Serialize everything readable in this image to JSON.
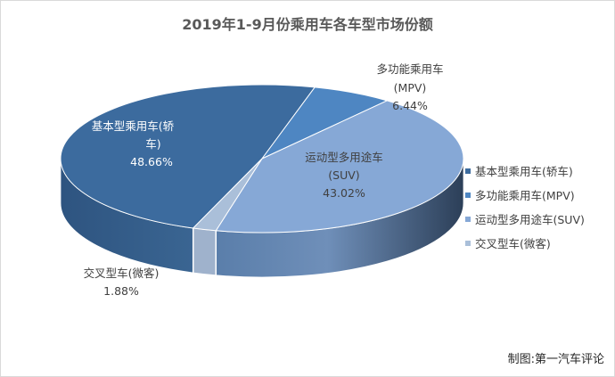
{
  "chart_data": {
    "type": "pie",
    "variant": "3d",
    "title": "2019年1-9月份乘用车各车型市场份额",
    "categories": [
      "基本型乘用车(轿车)",
      "多功能乘用车(MPV)",
      "运动型多用途车(SUV)",
      "交叉型车(微客)"
    ],
    "values": [
      48.66,
      6.44,
      43.02,
      1.88
    ],
    "value_labels": [
      "48.66%",
      "6.44%",
      "43.02%",
      "1.88%"
    ],
    "colors": [
      "#3c6b9e",
      "#4e86c2",
      "#86a8d6",
      "#aabfd9"
    ],
    "legend_position": "right",
    "data_labels": {
      "sedan": [
        "基本型乘用车(轿",
        "车)"
      ],
      "mpv": [
        "多功能乘用车",
        "(MPV)"
      ],
      "suv": [
        "运动型多用途车",
        "(SUV)"
      ],
      "micro": [
        "交叉型车(微客)"
      ]
    }
  },
  "credit": "制图:第一汽车评论"
}
